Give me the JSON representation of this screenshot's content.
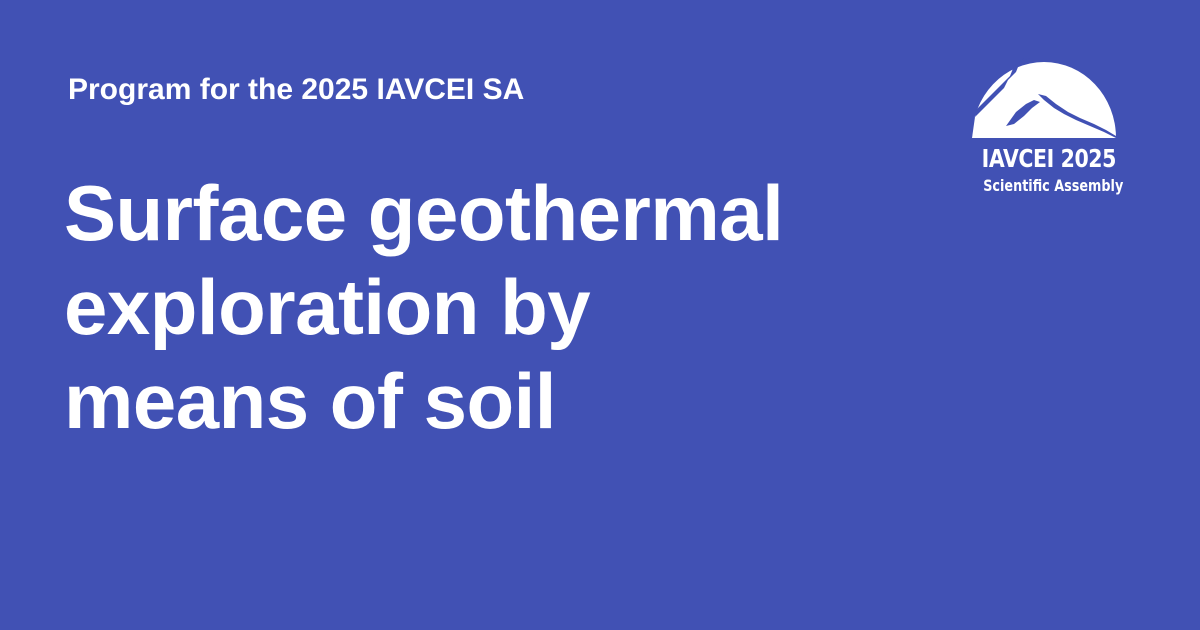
{
  "card": {
    "kicker": "Program for the 2025 IAVCEI SA",
    "title_lines": [
      "Surface geothermal",
      "exploration by",
      "means of soil"
    ]
  },
  "logo": {
    "title": "IAVCEI 2025",
    "subtitle": "Scientific Assembly",
    "icon": "volcano-mountain-icon"
  },
  "colors": {
    "background": "#4151b4",
    "text": "#ffffff"
  }
}
